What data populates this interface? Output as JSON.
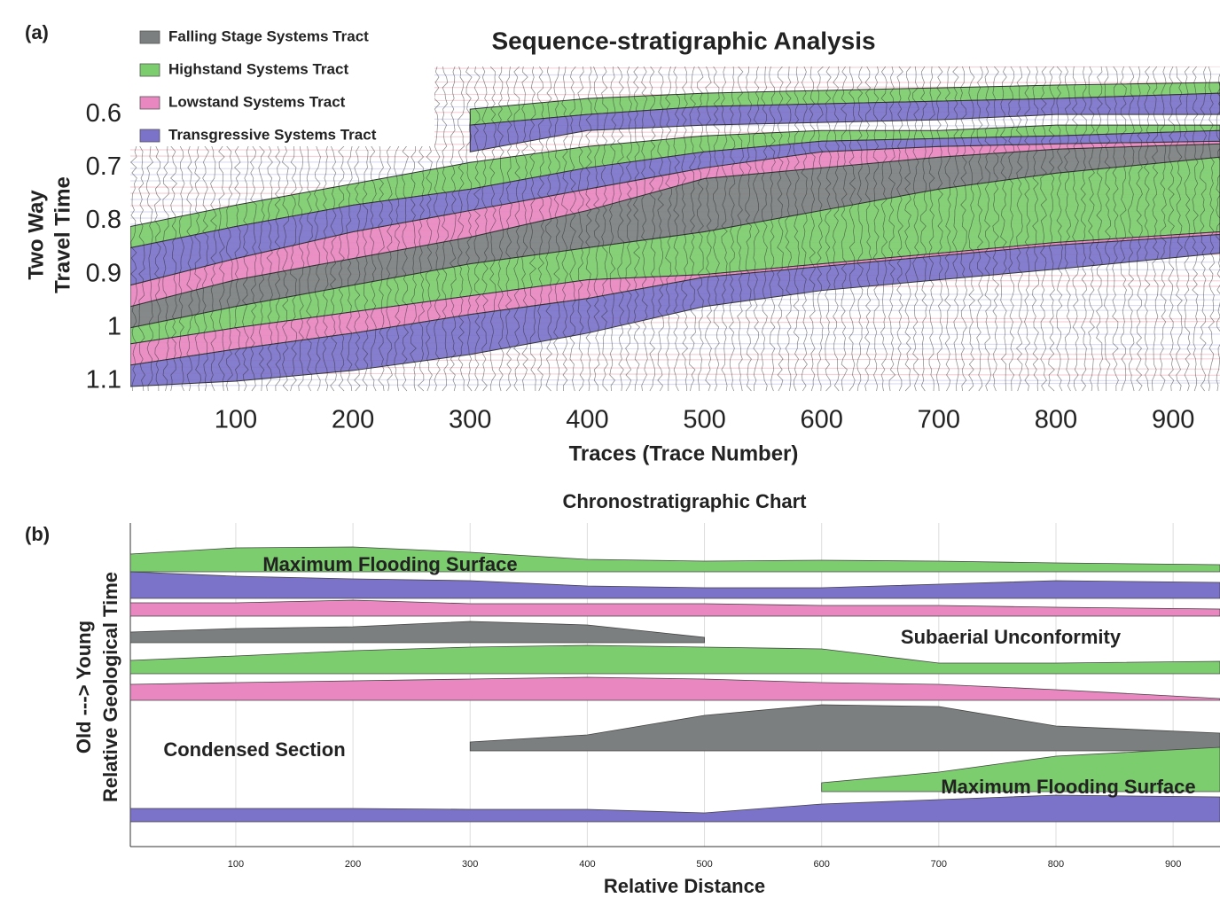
{
  "chart_data": [
    {
      "type": "band",
      "panel": "(a)",
      "title": "Sequence-stratigraphic Analysis",
      "xlabel": "Traces (Trace Number)",
      "ylabel": [
        "Two Way",
        "Travel Time"
      ],
      "x": [
        10,
        100,
        200,
        300,
        400,
        500,
        600,
        700,
        800,
        940
      ],
      "xlim": [
        10,
        940
      ],
      "xticks": [
        100,
        200,
        300,
        400,
        500,
        600,
        700,
        800,
        900
      ],
      "ylim": [
        1.12,
        0.51
      ],
      "yticks": [
        0.6,
        0.7,
        0.8,
        0.9,
        1,
        1.1
      ],
      "series": [
        {
          "name": "Falling Stage Systems Tract",
          "color": "#7b7f7f",
          "bands": [
            {
              "top": [
                0.96,
                0.91,
                0.87,
                0.83,
                0.78,
                0.72,
                0.7,
                0.68,
                0.665,
                0.655
              ],
              "base": [
                1.0,
                0.96,
                0.92,
                0.88,
                0.85,
                0.82,
                0.78,
                0.74,
                0.71,
                0.68
              ]
            }
          ]
        },
        {
          "name": "Highstand Systems Tract",
          "color": "#7ccd6d",
          "bands": [
            {
              "top": [
                null,
                null,
                null,
                0.59,
                0.57,
                0.56,
                0.555,
                0.55,
                0.545,
                0.54
              ],
              "base": [
                null,
                null,
                null,
                0.62,
                0.6,
                0.585,
                0.58,
                0.575,
                0.57,
                0.56
              ]
            },
            {
              "top": [
                0.81,
                0.77,
                0.73,
                0.69,
                0.66,
                0.64,
                0.63,
                0.63,
                0.62,
                0.62
              ],
              "base": [
                0.85,
                0.81,
                0.77,
                0.74,
                0.7,
                0.67,
                0.65,
                0.645,
                0.64,
                0.63
              ]
            },
            {
              "top": [
                1.0,
                0.96,
                0.92,
                0.88,
                0.85,
                0.82,
                0.78,
                0.74,
                0.71,
                0.68
              ],
              "base": [
                1.03,
                1.0,
                0.97,
                0.94,
                0.91,
                0.9,
                0.88,
                0.86,
                0.84,
                0.82
              ]
            }
          ]
        },
        {
          "name": "Lowstand Systems Tract",
          "color": "#e887c0",
          "bands": [
            {
              "top": [
                0.92,
                0.87,
                0.82,
                0.78,
                0.74,
                0.7,
                0.67,
                0.66,
                0.655,
                0.65
              ],
              "base": [
                0.96,
                0.91,
                0.87,
                0.83,
                0.78,
                0.72,
                0.7,
                0.68,
                0.665,
                0.655
              ]
            },
            {
              "top": [
                1.03,
                1.0,
                0.97,
                0.94,
                0.91,
                0.9,
                0.88,
                0.86,
                0.84,
                0.82
              ],
              "base": [
                1.07,
                1.04,
                1.01,
                0.975,
                0.945,
                0.905,
                0.885,
                0.865,
                0.845,
                0.825
              ]
            }
          ]
        },
        {
          "name": "Transgressive Systems Tract",
          "color": "#7b72c9",
          "bands": [
            {
              "top": [
                null,
                null,
                null,
                0.62,
                0.6,
                0.585,
                0.58,
                0.575,
                0.57,
                0.56
              ],
              "base": [
                null,
                null,
                null,
                0.67,
                0.63,
                0.62,
                0.615,
                0.61,
                0.6,
                0.6
              ]
            },
            {
              "top": [
                0.85,
                0.81,
                0.77,
                0.74,
                0.7,
                0.67,
                0.65,
                0.645,
                0.64,
                0.63
              ],
              "base": [
                0.92,
                0.87,
                0.82,
                0.78,
                0.74,
                0.7,
                0.67,
                0.66,
                0.655,
                0.65
              ]
            },
            {
              "top": [
                1.07,
                1.04,
                1.01,
                0.975,
                0.945,
                0.905,
                0.885,
                0.865,
                0.845,
                0.825
              ],
              "base": [
                1.11,
                1.1,
                1.08,
                1.05,
                1.01,
                0.96,
                0.93,
                0.91,
                0.89,
                0.86
              ]
            }
          ]
        }
      ]
    },
    {
      "type": "ridge",
      "panel": "(b)",
      "title": "Chronostratigraphic Chart",
      "xlabel": "Relative Distance",
      "ylabel": [
        "Old  --->  Young",
        "Relative Geological Time"
      ],
      "x": [
        10,
        100,
        200,
        300,
        400,
        500,
        600,
        700,
        800,
        940
      ],
      "xlim": [
        10,
        940
      ],
      "xticks": [
        100,
        200,
        300,
        400,
        500,
        600,
        700,
        800,
        900
      ],
      "grid": true,
      "rows": [
        {
          "color": "#7ccd6d",
          "values": [
            20,
            27,
            28,
            22,
            14,
            12,
            13,
            12,
            10,
            8
          ]
        },
        {
          "color": "#7b72c9",
          "values": [
            30,
            25,
            22,
            20,
            14,
            12,
            12,
            16,
            20,
            18
          ]
        },
        {
          "color": "#e887c0",
          "values": [
            15,
            15,
            18,
            14,
            14,
            14,
            12,
            12,
            10,
            8
          ]
        },
        {
          "color": "#7b7f7f",
          "values": [
            12,
            16,
            18,
            24,
            20,
            6,
            null,
            null,
            null,
            null
          ]
        },
        {
          "color": "#7ccd6d",
          "values": [
            15,
            20,
            26,
            30,
            32,
            30,
            28,
            12,
            12,
            14
          ]
        },
        {
          "color": "#e887c0",
          "values": [
            18,
            20,
            22,
            24,
            26,
            24,
            20,
            18,
            12,
            2
          ]
        },
        {
          "color": "#7b7f7f",
          "values": [
            null,
            null,
            null,
            10,
            18,
            40,
            52,
            50,
            28,
            20
          ]
        },
        {
          "color": "#7ccd6d",
          "values": [
            null,
            null,
            null,
            null,
            null,
            null,
            10,
            22,
            40,
            50
          ]
        },
        {
          "color": "#7b72c9",
          "values": [
            15,
            15,
            15,
            14,
            14,
            10,
            20,
            25,
            30,
            28
          ]
        }
      ],
      "annotations": [
        "Maximum Flooding Surface",
        "Subaerial Unconformity",
        "Condensed Section",
        "Maximum Flooding Surface"
      ]
    }
  ]
}
